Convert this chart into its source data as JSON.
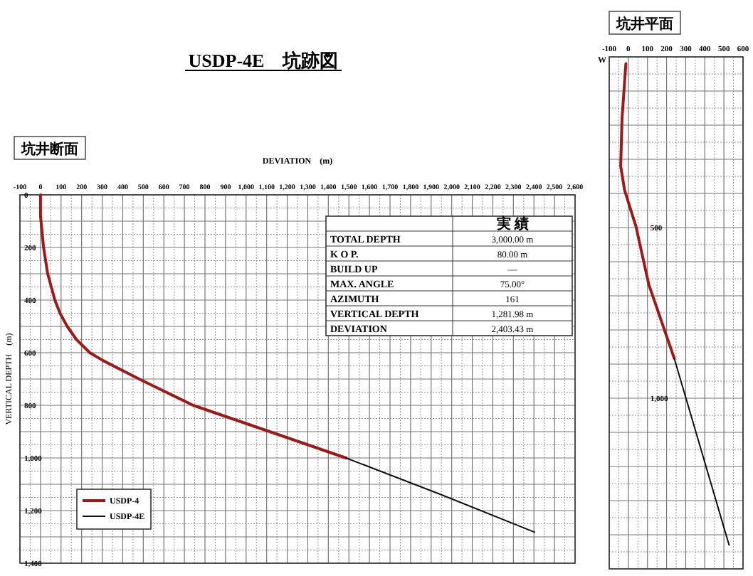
{
  "chart_data": [
    {
      "type": "line",
      "title": "USDP-4E　坑跡図",
      "subtitle": "坑井断面",
      "xlabel": "DEVIATION　(m)",
      "ylabel": "VERTICAL DEPTH　(m)",
      "xlim": [
        -100,
        2600
      ],
      "xticks": [
        -100,
        0,
        100,
        200,
        300,
        400,
        500,
        600,
        700,
        800,
        900,
        {
          "value": 1000,
          "label": "1,000"
        },
        {
          "value": 1100,
          "label": "1,100"
        },
        {
          "value": 1200,
          "label": "1,200"
        },
        {
          "value": 1300,
          "label": "1,300"
        },
        {
          "value": 1400,
          "label": "1,400"
        },
        {
          "value": 1500,
          "label": "1,500"
        },
        {
          "value": 1600,
          "label": "1,600"
        },
        {
          "value": 1700,
          "label": "1,700"
        },
        {
          "value": 1800,
          "label": "1,800"
        },
        {
          "value": 1900,
          "label": "1,900"
        },
        {
          "value": 2000,
          "label": "2,000"
        },
        {
          "value": 2100,
          "label": "2,100"
        },
        {
          "value": 2200,
          "label": "2,200"
        },
        {
          "value": 2300,
          "label": "2,300"
        },
        {
          "value": 2400,
          "label": "2,400"
        },
        {
          "value": 2500,
          "label": "2,500"
        },
        {
          "value": 2600,
          "label": "2,600"
        }
      ],
      "ylim": [
        1400,
        0
      ],
      "yticks": [
        0,
        200,
        400,
        600,
        800,
        {
          "value": 1000,
          "label": "1,000"
        },
        {
          "value": 1200,
          "label": "1,200"
        },
        {
          "value": 1400,
          "label": "1,400"
        }
      ],
      "grid": true,
      "legend": "bottom left",
      "line_style": "solid",
      "marker": "none",
      "series": [
        {
          "name": "USDP-4",
          "color": "#9b1b1b",
          "x": [
            0,
            0,
            15,
            35,
            70,
            95,
            130,
            175,
            240,
            305,
            480,
            743,
            1115,
            1486
          ],
          "values": [
            0,
            80,
            200,
            300,
            400,
            450,
            500,
            550,
            600,
            630,
            700,
            800,
            900,
            1000
          ]
        },
        {
          "name": "USDP-4E",
          "color": "#111111",
          "x": [
            1486,
            1950,
            2403
          ],
          "values": [
            1000,
            1140,
            1282
          ]
        }
      ],
      "annotations": [
        "実 績",
        "TOTAL DEPTH",
        "3,000.00 m",
        "K O P.",
        "80.00 m",
        "BUILD UP",
        "—",
        "MAX. ANGLE",
        "75.00°",
        "AZIMUTH",
        "161",
        "VERTICAL DEPTH",
        "1,281.98 m",
        "DEVIATION",
        "2,403.43 m"
      ]
    },
    {
      "type": "line",
      "subtitle": "坑井平面",
      "xlim": [
        -100,
        600
      ],
      "xticks": [
        -100,
        0,
        100,
        200,
        300,
        400,
        500,
        600
      ],
      "ylim": [
        1500,
        0
      ],
      "yticks": [
        {
          "value": 500,
          "label": "500"
        },
        {
          "value": 1000,
          "label": "1,000"
        }
      ],
      "grid": true,
      "line_style": "solid",
      "marker": "none",
      "series": [
        {
          "color": "#9b1b1b",
          "x": [
            -13,
            -33,
            -40,
            -20,
            40,
            107,
            240
          ],
          "values": [
            20,
            180,
            320,
            390,
            497,
            667,
            883
          ]
        },
        {
          "color": "#111111",
          "x": [
            240,
            527
          ],
          "values": [
            883,
            1430
          ]
        }
      ],
      "annotations": [
        "W"
      ]
    }
  ]
}
